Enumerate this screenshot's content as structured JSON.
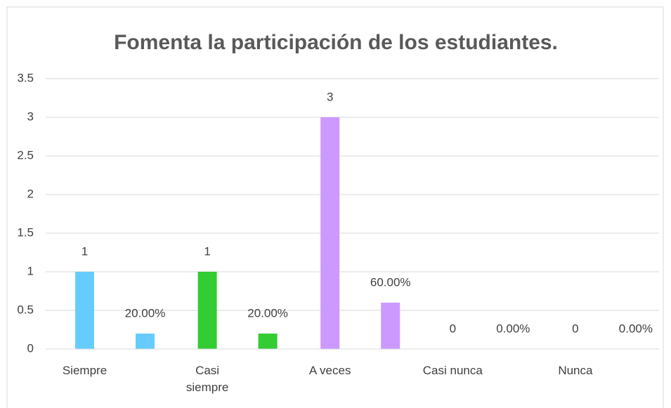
{
  "chart_data": {
    "type": "bar",
    "title": "Fomenta la participación de los estudiantes.",
    "categories": [
      "Siempre",
      "Casi siempre",
      "A veces",
      "Casi nunca",
      "Nunca"
    ],
    "colors": [
      "#66CCFF",
      "#33CC33",
      "#CC99FF",
      "#FF9966",
      "#FFCC66"
    ],
    "series": [
      {
        "values": [
          1,
          1,
          3,
          0,
          0
        ]
      },
      {
        "values": [
          0.2,
          0.2,
          0.6,
          0,
          0
        ],
        "value_labels": [
          "20.00%",
          "20.00%",
          "60.00%",
          "0.00%",
          "0.00%"
        ]
      }
    ],
    "ylim": [
      0,
      3.5
    ],
    "yticks": [
      0,
      0.5,
      1,
      1.5,
      2,
      2.5,
      3,
      3.5
    ],
    "grid": true
  }
}
